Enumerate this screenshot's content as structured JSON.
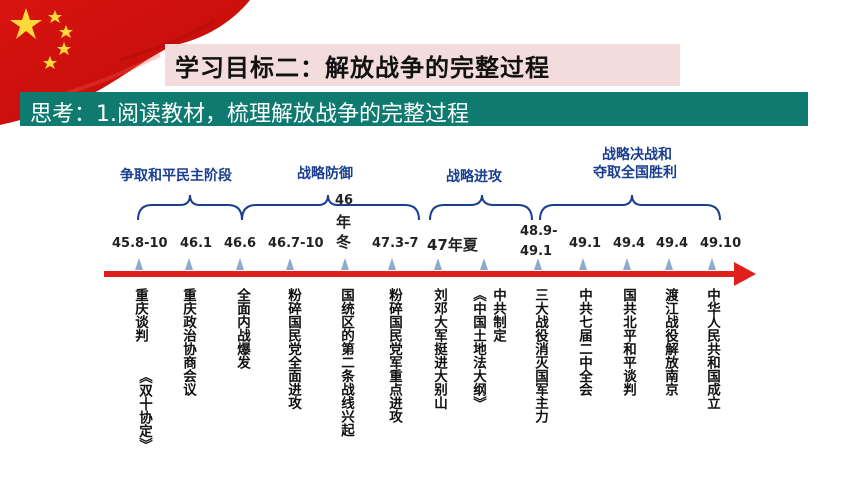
{
  "title": "学习目标二：解放战争的完整过程",
  "think": "思考：1.阅读教材，梳理解放战争的完整过程",
  "phases": [
    {
      "label": "争取和平民主阶段"
    },
    {
      "label": "战略防御"
    },
    {
      "label": "战略进攻"
    },
    {
      "label_line1": "战略决战和",
      "label_line2": "夺取全国胜利"
    }
  ],
  "dates": [
    "45.8-10",
    "46.1",
    "46.6",
    "46.7-10",
    "46",
    "年",
    "冬",
    "47.3-7",
    "47年夏",
    "48.9-",
    "49.1",
    "49.1",
    "49.4",
    "49.4",
    "49.10"
  ],
  "events": [
    {
      "col1": "重庆谈判",
      "col2": "《双十协定》"
    },
    {
      "col1": "重庆政治协商会议"
    },
    {
      "col1": "全面内战爆发"
    },
    {
      "col1": "粉碎国民党全面进攻"
    },
    {
      "col1": "国统区的第二条战线兴起"
    },
    {
      "col1": "粉碎国民党军重点进攻"
    },
    {
      "col1": "刘邓大军挺进大别山"
    },
    {
      "col1": "中共制定",
      "col2": "《中国土地法大纲》"
    },
    {
      "col1": "三大战役消灭国军主力"
    },
    {
      "col1": "中共七届二中全会"
    },
    {
      "col1": "国共北平和平谈判"
    },
    {
      "col1": "渡江战役解放南京"
    },
    {
      "col1": "中华人民共和国成立"
    }
  ],
  "colors": {
    "arrow": "#e0201c",
    "marker": "#8fa8d0",
    "bracket": "#1a3f8f",
    "phase_text": "#1a3f8f",
    "think_bar": "#0f7a70",
    "title_bar": "#f3dcdc"
  }
}
